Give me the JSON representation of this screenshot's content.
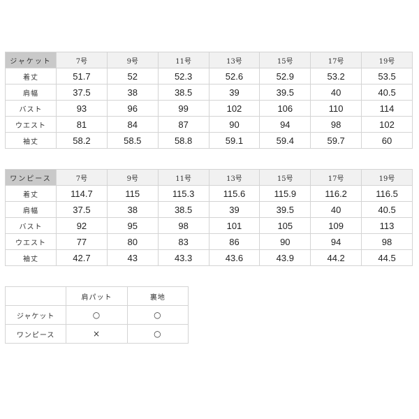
{
  "sizes": [
    "7号",
    "9号",
    "11号",
    "13号",
    "15号",
    "17号",
    "19号"
  ],
  "jacket_table": {
    "title": "ジャケット",
    "rows": [
      {
        "label": "着丈",
        "values": [
          "51.7",
          "52",
          "52.3",
          "52.6",
          "52.9",
          "53.2",
          "53.5"
        ]
      },
      {
        "label": "肩幅",
        "values": [
          "37.5",
          "38",
          "38.5",
          "39",
          "39.5",
          "40",
          "40.5"
        ]
      },
      {
        "label": "バスト",
        "values": [
          "93",
          "96",
          "99",
          "102",
          "106",
          "110",
          "114"
        ]
      },
      {
        "label": "ウエスト",
        "values": [
          "81",
          "84",
          "87",
          "90",
          "94",
          "98",
          "102"
        ]
      },
      {
        "label": "袖丈",
        "values": [
          "58.2",
          "58.5",
          "58.8",
          "59.1",
          "59.4",
          "59.7",
          "60"
        ]
      }
    ]
  },
  "dress_table": {
    "title": "ワンピース",
    "rows": [
      {
        "label": "着丈",
        "values": [
          "114.7",
          "115",
          "115.3",
          "115.6",
          "115.9",
          "116.2",
          "116.5"
        ]
      },
      {
        "label": "肩幅",
        "values": [
          "37.5",
          "38",
          "38.5",
          "39",
          "39.5",
          "40",
          "40.5"
        ]
      },
      {
        "label": "バスト",
        "values": [
          "92",
          "95",
          "98",
          "101",
          "105",
          "109",
          "113"
        ]
      },
      {
        "label": "ウエスト",
        "values": [
          "77",
          "80",
          "83",
          "86",
          "90",
          "94",
          "98"
        ]
      },
      {
        "label": "袖丈",
        "values": [
          "42.7",
          "43",
          "43.3",
          "43.6",
          "43.9",
          "44.2",
          "44.5"
        ]
      }
    ]
  },
  "feature_table": {
    "headers": [
      "",
      "肩パット",
      "裏地"
    ],
    "rows": [
      {
        "label": "ジャケット",
        "values": [
          "○",
          "○"
        ]
      },
      {
        "label": "ワンピース",
        "values": [
          "×",
          "○"
        ]
      }
    ]
  }
}
